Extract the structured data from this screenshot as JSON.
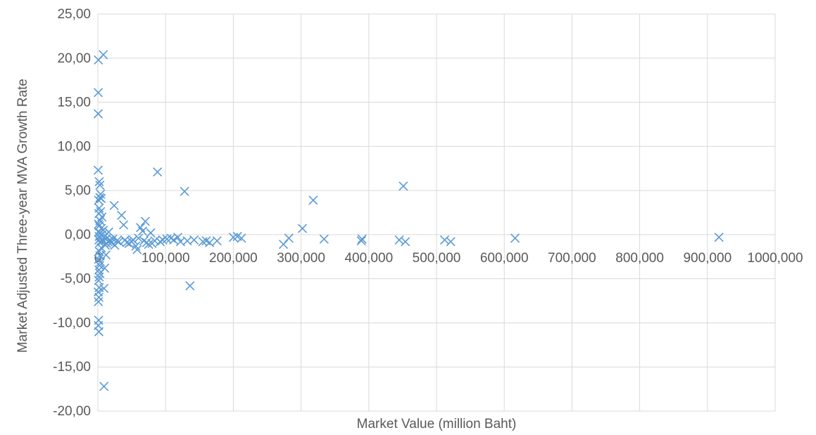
{
  "chart_data": {
    "type": "scatter",
    "title": "",
    "xlabel": "Market Value (million Baht)",
    "ylabel": "Market Adjusted Three-year MVA Growth Rate",
    "xlim": [
      0,
      1000000
    ],
    "ylim": [
      -20,
      25
    ],
    "x_ticks": [
      0,
      100000,
      200000,
      300000,
      400000,
      500000,
      600000,
      700000,
      800000,
      900000,
      1000000
    ],
    "x_tick_labels": [
      "0",
      "100,000",
      "200,000",
      "300,000",
      "400,000",
      "500,000",
      "600,000",
      "700,000",
      "800,000",
      "900,000",
      "1000,000"
    ],
    "y_ticks": [
      -20,
      -15,
      -10,
      -5,
      0,
      5,
      10,
      15,
      20,
      25
    ],
    "y_tick_labels": [
      "-20,00",
      "-15,00",
      "-10,00",
      "-5,00",
      "0,00",
      "5,00",
      "10,00",
      "15,00",
      "20,00",
      "25,00"
    ],
    "grid": true,
    "marker": "x",
    "marker_color": "#5B9BD5",
    "gridline_color": "#D9D9D9",
    "text_color": "#595959",
    "series": [
      {
        "points": [
          [
            800,
            19.8
          ],
          [
            8000,
            20.4
          ],
          [
            600,
            16.1
          ],
          [
            500,
            13.7
          ],
          [
            500,
            7.3
          ],
          [
            2000,
            6.0
          ],
          [
            3000,
            5.6
          ],
          [
            4000,
            4.6
          ],
          [
            3000,
            4.2
          ],
          [
            5000,
            4.1
          ],
          [
            1000,
            3.9
          ],
          [
            2000,
            3.0
          ],
          [
            4000,
            2.6
          ],
          [
            1500,
            2.4
          ],
          [
            6000,
            2.0
          ],
          [
            3000,
            1.6
          ],
          [
            1000,
            1.2
          ],
          [
            2000,
            1.0
          ],
          [
            5000,
            0.7
          ],
          [
            8000,
            0.5
          ],
          [
            1000,
            0.3
          ],
          [
            3000,
            0.2
          ],
          [
            6000,
            0.0
          ],
          [
            2000,
            -0.2
          ],
          [
            9000,
            -0.3
          ],
          [
            4000,
            -0.4
          ],
          [
            1500,
            -0.6
          ],
          [
            7000,
            -0.7
          ],
          [
            3000,
            -0.9
          ],
          [
            12000,
            -0.5
          ],
          [
            15000,
            -0.8
          ],
          [
            18000,
            -0.6
          ],
          [
            11000,
            -1.2
          ],
          [
            5000,
            -1.5
          ],
          [
            2000,
            -1.9
          ],
          [
            3000,
            -2.4
          ],
          [
            1000,
            -2.8
          ],
          [
            4000,
            -3.1
          ],
          [
            2500,
            -3.5
          ],
          [
            1500,
            -4.0
          ],
          [
            3000,
            -4.4
          ],
          [
            2000,
            -4.8
          ],
          [
            1000,
            -5.2
          ],
          [
            2000,
            -6.0
          ],
          [
            500,
            -6.5
          ],
          [
            1500,
            -7.1
          ],
          [
            800,
            -7.6
          ],
          [
            1200,
            -9.7
          ],
          [
            700,
            -10.3
          ],
          [
            1500,
            -11.0
          ],
          [
            9000,
            -6.1
          ],
          [
            9000,
            -17.2
          ],
          [
            10000,
            -3.8
          ],
          [
            12000,
            -2.3
          ],
          [
            13000,
            -1.0
          ],
          [
            16000,
            0.3
          ],
          [
            20000,
            -0.9
          ],
          [
            22000,
            -0.5
          ],
          [
            25000,
            -1.2
          ],
          [
            28000,
            -0.7
          ],
          [
            31000,
            -0.8
          ],
          [
            24000,
            3.3
          ],
          [
            35000,
            2.2
          ],
          [
            38000,
            1.1
          ],
          [
            40000,
            -0.6
          ],
          [
            43000,
            -0.9
          ],
          [
            46000,
            -1.0
          ],
          [
            50000,
            -0.8
          ],
          [
            52000,
            -0.6
          ],
          [
            56000,
            -1.3
          ],
          [
            58000,
            -1.7
          ],
          [
            60000,
            -0.4
          ],
          [
            63000,
            0.8
          ],
          [
            66000,
            0.4
          ],
          [
            68000,
            -0.7
          ],
          [
            70000,
            1.5
          ],
          [
            72000,
            -0.9
          ],
          [
            75000,
            -1.1
          ],
          [
            78000,
            0.2
          ],
          [
            80000,
            -1.0
          ],
          [
            84000,
            -0.7
          ],
          [
            88000,
            7.1
          ],
          [
            92000,
            -0.8
          ],
          [
            96000,
            -0.6
          ],
          [
            102000,
            -0.5
          ],
          [
            108000,
            -0.4
          ],
          [
            112000,
            -0.6
          ],
          [
            118000,
            -0.3
          ],
          [
            122000,
            -0.8
          ],
          [
            128000,
            4.9
          ],
          [
            132000,
            -0.7
          ],
          [
            136000,
            -5.8
          ],
          [
            142000,
            -0.6
          ],
          [
            155000,
            -0.8
          ],
          [
            160000,
            -0.7
          ],
          [
            165000,
            -0.9
          ],
          [
            176000,
            -0.7
          ],
          [
            200000,
            -0.3
          ],
          [
            206000,
            -0.2
          ],
          [
            212000,
            -0.4
          ],
          [
            274000,
            -1.1
          ],
          [
            282000,
            -0.4
          ],
          [
            302000,
            0.7
          ],
          [
            318000,
            3.9
          ],
          [
            334000,
            -0.5
          ],
          [
            389000,
            -0.7
          ],
          [
            390000,
            -0.5
          ],
          [
            445000,
            -0.6
          ],
          [
            451000,
            5.5
          ],
          [
            454000,
            -0.8
          ],
          [
            512000,
            -0.6
          ],
          [
            521000,
            -0.8
          ],
          [
            616000,
            -0.4
          ],
          [
            917000,
            -0.3
          ]
        ]
      }
    ]
  }
}
